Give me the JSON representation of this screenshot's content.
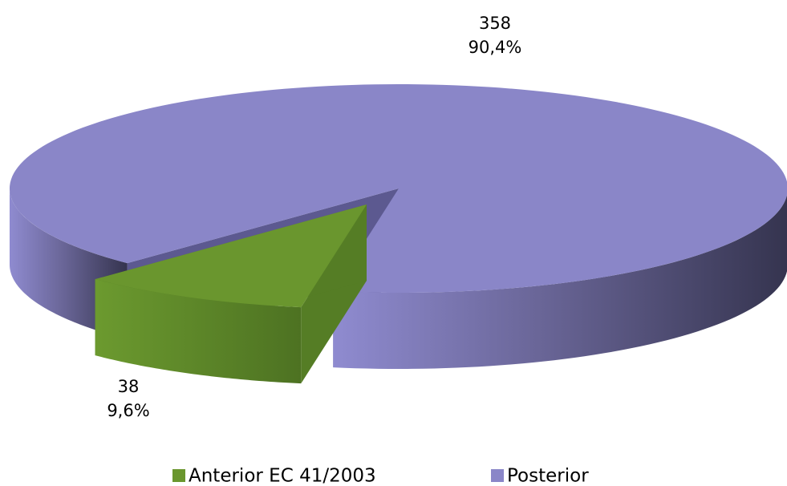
{
  "chart_data": {
    "type": "pie",
    "categories": [
      "Anterior EC 41/2003",
      "Posterior"
    ],
    "values": [
      38,
      358
    ],
    "percentages": [
      9.6,
      90.4
    ],
    "percentage_labels": [
      "9,6%",
      "90,4%"
    ],
    "colors": [
      "#6a962e",
      "#8a86c8"
    ],
    "legend": "bottom"
  }
}
